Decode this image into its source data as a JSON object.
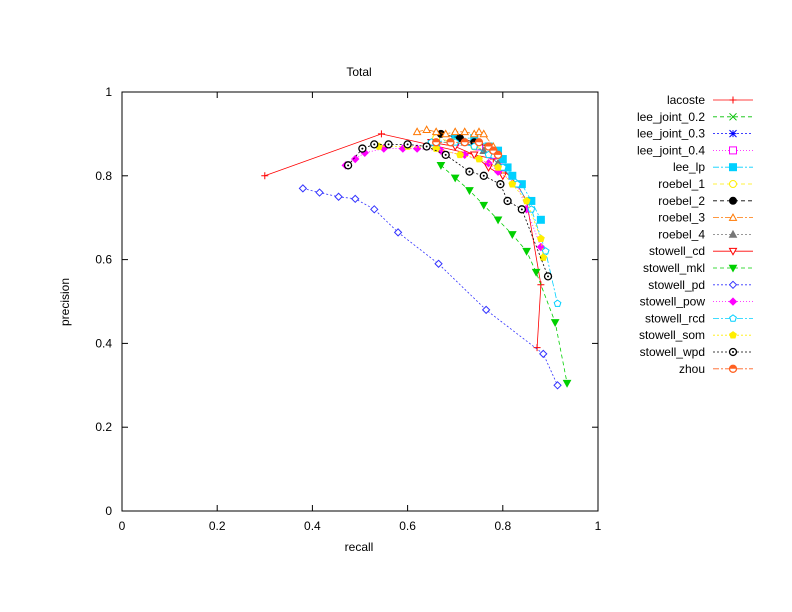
{
  "chart_data": {
    "type": "line",
    "title": "Total",
    "xlabel": "recall",
    "ylabel": "precision",
    "xlim": [
      0,
      1
    ],
    "ylim": [
      0,
      1
    ],
    "xticks": [
      "0",
      "0.2",
      "0.4",
      "0.6",
      "0.8",
      "1"
    ],
    "yticks": [
      "0",
      "0.2",
      "0.4",
      "0.6",
      "0.8",
      "1"
    ],
    "grid": false,
    "legend_position": "outside-right",
    "series": [
      {
        "name": "lacoste",
        "color": "#ff0000",
        "marker": "plus",
        "dash": "",
        "x": [
          0.3,
          0.545,
          0.78,
          0.83,
          0.85,
          0.88,
          0.872
        ],
        "y": [
          0.8,
          0.9,
          0.84,
          0.78,
          0.74,
          0.54,
          0.39
        ]
      },
      {
        "name": "lee_joint_0.2",
        "color": "#00c000",
        "marker": "cross",
        "dash": "4,3",
        "x": [
          0.7,
          0.75,
          0.78,
          0.8
        ],
        "y": [
          0.88,
          0.87,
          0.85,
          0.82
        ]
      },
      {
        "name": "lee_joint_0.3",
        "color": "#0000ff",
        "marker": "star",
        "dash": "2,2",
        "x": [
          0.7,
          0.75,
          0.78,
          0.8
        ],
        "y": [
          0.88,
          0.87,
          0.85,
          0.82
        ]
      },
      {
        "name": "lee_joint_0.4",
        "color": "#ff00ff",
        "marker": "square-open",
        "dash": "1,2",
        "x": [
          0.7,
          0.75,
          0.78,
          0.8
        ],
        "y": [
          0.88,
          0.87,
          0.85,
          0.82
        ]
      },
      {
        "name": "lee_lp",
        "color": "#00d0ff",
        "marker": "square-filled",
        "dash": "6,2,2,2",
        "x": [
          0.66,
          0.7,
          0.74,
          0.77,
          0.79,
          0.8,
          0.81,
          0.82,
          0.84,
          0.86,
          0.88
        ],
        "y": [
          0.88,
          0.89,
          0.89,
          0.87,
          0.86,
          0.84,
          0.82,
          0.8,
          0.78,
          0.74,
          0.695
        ]
      },
      {
        "name": "roebel_1",
        "color": "#ffee00",
        "marker": "circle-open",
        "dash": "4,3",
        "x": [
          0.66,
          0.7,
          0.74,
          0.77,
          0.79
        ],
        "y": [
          0.89,
          0.88,
          0.87,
          0.86,
          0.85
        ]
      },
      {
        "name": "roebel_2",
        "color": "#000000",
        "marker": "circle-filled",
        "dash": "4,3",
        "x": [
          0.67,
          0.71,
          0.74,
          0.77,
          0.79
        ],
        "y": [
          0.9,
          0.89,
          0.88,
          0.87,
          0.85
        ]
      },
      {
        "name": "roebel_3",
        "color": "#ff7700",
        "marker": "triangle-open",
        "dash": "6,2,2,2",
        "x": [
          0.62,
          0.64,
          0.66,
          0.68,
          0.7,
          0.72,
          0.74,
          0.75,
          0.76,
          0.78
        ],
        "y": [
          0.905,
          0.91,
          0.905,
          0.9,
          0.905,
          0.905,
          0.9,
          0.905,
          0.9,
          0.87
        ]
      },
      {
        "name": "roebel_4",
        "color": "#777777",
        "marker": "triangle-filled",
        "dash": "2,2",
        "x": [
          0.72,
          0.76,
          0.79
        ],
        "y": [
          0.88,
          0.86,
          0.83
        ]
      },
      {
        "name": "stowell_cd",
        "color": "#ff0000",
        "marker": "triangle-down-open",
        "dash": "",
        "x": [
          0.65,
          0.7,
          0.74,
          0.77,
          0.8
        ],
        "y": [
          0.88,
          0.87,
          0.85,
          0.82,
          0.8
        ]
      },
      {
        "name": "stowell_mkl",
        "color": "#00d000",
        "marker": "triangle-down-filled",
        "dash": "4,3",
        "x": [
          0.67,
          0.7,
          0.73,
          0.76,
          0.79,
          0.82,
          0.85,
          0.87,
          0.91,
          0.935
        ],
        "y": [
          0.825,
          0.795,
          0.765,
          0.73,
          0.695,
          0.66,
          0.62,
          0.57,
          0.45,
          0.305
        ]
      },
      {
        "name": "stowell_pd",
        "color": "#3333ff",
        "marker": "diamond-open",
        "dash": "2,2",
        "x": [
          0.38,
          0.415,
          0.455,
          0.49,
          0.53,
          0.58,
          0.665,
          0.765,
          0.885,
          0.915
        ],
        "y": [
          0.77,
          0.76,
          0.75,
          0.745,
          0.72,
          0.665,
          0.59,
          0.48,
          0.375,
          0.3
        ]
      },
      {
        "name": "stowell_pow",
        "color": "#ff00ff",
        "marker": "diamond-filled",
        "dash": "1,2",
        "x": [
          0.47,
          0.49,
          0.51,
          0.55,
          0.59,
          0.62,
          0.67,
          0.72,
          0.77,
          0.79,
          0.83,
          0.85,
          0.88
        ],
        "y": [
          0.825,
          0.84,
          0.855,
          0.865,
          0.865,
          0.865,
          0.86,
          0.85,
          0.83,
          0.81,
          0.78,
          0.72,
          0.63
        ]
      },
      {
        "name": "stowell_rcd",
        "color": "#00d0ff",
        "marker": "pentagon-open",
        "dash": "6,2,2,2",
        "x": [
          0.65,
          0.7,
          0.74,
          0.77,
          0.8,
          0.83,
          0.86,
          0.89,
          0.915
        ],
        "y": [
          0.88,
          0.88,
          0.87,
          0.85,
          0.82,
          0.78,
          0.72,
          0.62,
          0.495
        ]
      },
      {
        "name": "stowell_som",
        "color": "#ffee00",
        "marker": "pentagon-filled",
        "dash": "2,2",
        "x": [
          0.54,
          0.6,
          0.66,
          0.71,
          0.75,
          0.79,
          0.82,
          0.85,
          0.88,
          0.885
        ],
        "y": [
          0.87,
          0.87,
          0.865,
          0.85,
          0.84,
          0.82,
          0.78,
          0.74,
          0.65,
          0.605
        ]
      },
      {
        "name": "stowell_wpd",
        "color": "#000000",
        "marker": "circle-dot",
        "dash": "2,2",
        "x": [
          0.475,
          0.505,
          0.53,
          0.56,
          0.6,
          0.64,
          0.68,
          0.73,
          0.76,
          0.795,
          0.81,
          0.84,
          0.895
        ],
        "y": [
          0.825,
          0.865,
          0.875,
          0.875,
          0.875,
          0.87,
          0.85,
          0.81,
          0.8,
          0.78,
          0.74,
          0.72,
          0.56
        ]
      },
      {
        "name": "zhou",
        "color": "#ff6020",
        "marker": "circle-halfdot",
        "dash": "6,2,2,2",
        "x": [
          0.66,
          0.69,
          0.72,
          0.75,
          0.77,
          0.78,
          0.79
        ],
        "y": [
          0.88,
          0.88,
          0.88,
          0.88,
          0.87,
          0.86,
          0.85
        ]
      }
    ]
  }
}
